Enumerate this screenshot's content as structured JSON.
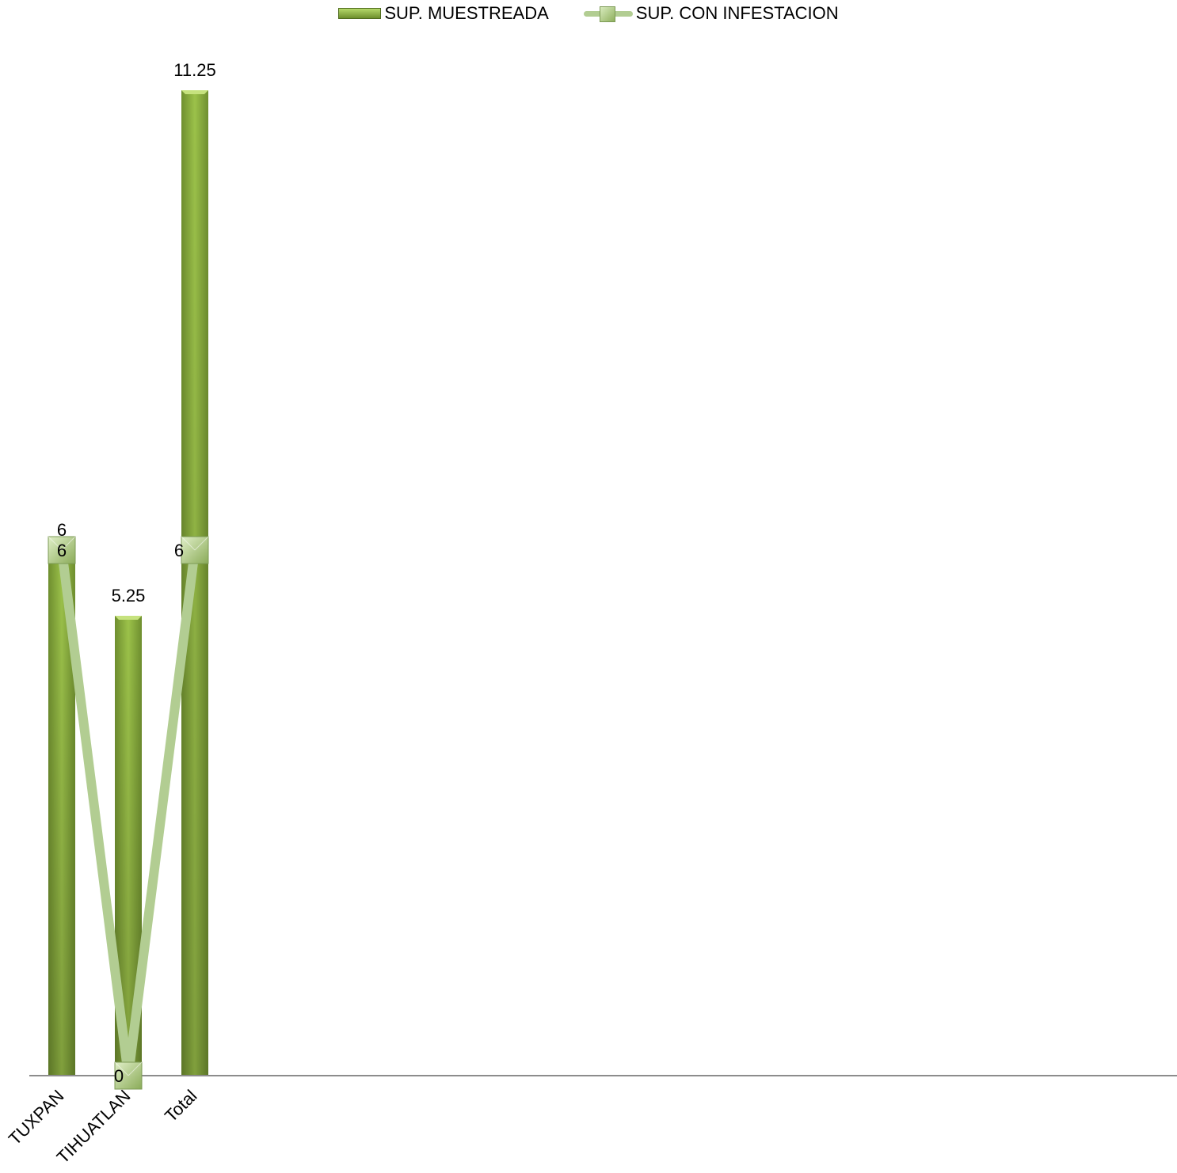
{
  "chart_data": {
    "type": "bar",
    "categories": [
      "TUXPAN",
      "TIHUATLAN",
      "Total"
    ],
    "series": [
      {
        "name": "SUP. MUESTREADA",
        "kind": "bar",
        "values": [
          6,
          5.25,
          11.25
        ],
        "color": "#8cb53f"
      },
      {
        "name": "SUP. CON INFESTACION",
        "kind": "line",
        "values": [
          6,
          0,
          6
        ],
        "color": "#b2cd92"
      }
    ],
    "ylim": [
      0,
      11.25
    ],
    "grid": false,
    "legend": "top"
  }
}
